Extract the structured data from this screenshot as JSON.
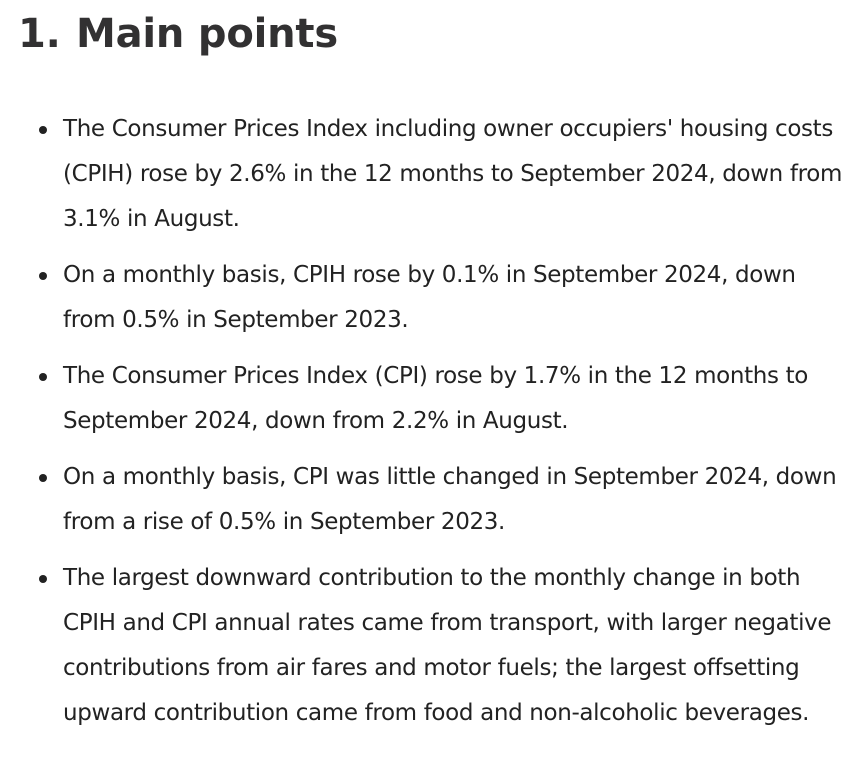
{
  "section": {
    "number": "1.",
    "title": "Main points"
  },
  "points": [
    "The Consumer Prices Index including owner occupiers' housing costs (CPIH) rose by 2.6% in the 12 months to September 2024, down from 3.1% in August.",
    "On a monthly basis, CPIH rose by 0.1% in September 2024, down from 0.5% in September 2023.",
    "The Consumer Prices Index (CPI) rose by 1.7% in the 12 months to September 2024, down from 2.2% in August.",
    "On a monthly basis, CPI was little changed in September 2024, down from a rise of 0.5% in September 2023.",
    "The largest downward contribution to the monthly change in both CPIH and CPI annual rates came from transport, with larger negative contributions from air fares and motor fuels; the largest offsetting upward contribution came from food and non-alcoholic beverages."
  ]
}
